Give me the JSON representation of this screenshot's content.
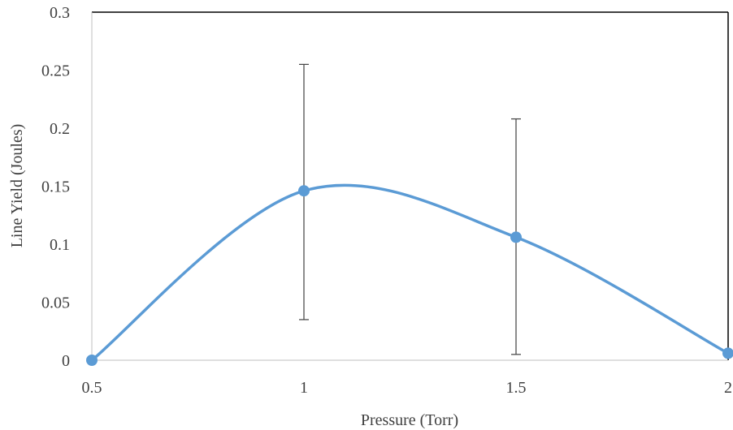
{
  "chart_data": {
    "type": "line",
    "xlabel": "Pressure (Torr)",
    "ylabel": "Line Yield (Joules)",
    "xlim": [
      0.5,
      2
    ],
    "ylim": [
      0,
      0.3
    ],
    "x_ticks": [
      "0.5",
      "1",
      "1.5",
      "2"
    ],
    "y_ticks": [
      "0",
      "0.05",
      "0.1",
      "0.15",
      "0.2",
      "0.25",
      "0.3"
    ],
    "smooth": true,
    "series": [
      {
        "color": "#5B9BD5",
        "points": [
          {
            "x": 0.5,
            "y": 0.0,
            "err_low": null,
            "err_high": null
          },
          {
            "x": 1.0,
            "y": 0.146,
            "err_low": 0.035,
            "err_high": 0.255
          },
          {
            "x": 1.5,
            "y": 0.106,
            "err_low": 0.005,
            "err_high": 0.208
          },
          {
            "x": 2.0,
            "y": 0.006,
            "err_low": null,
            "err_high": null
          }
        ]
      }
    ]
  }
}
